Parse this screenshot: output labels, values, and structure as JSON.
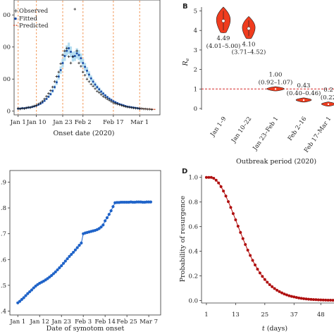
{
  "panels": {
    "a": {
      "legend": [
        "Observed",
        "Fitted",
        "Predicted"
      ],
      "xlabel": "Onset date (2020)"
    },
    "b": {
      "letter": "B",
      "ylabel_main": "R",
      "ylabel_sub": "e",
      "xlabel": "Outbreak period (2020)"
    },
    "c": {
      "xlabel": "Date of symotom onset"
    },
    "d": {
      "letter": "D",
      "ylabel": "Probability of resurgence",
      "xlabel_var": "t",
      "xlabel_unit": " (days)"
    }
  },
  "colors": {
    "observed": "#222222",
    "fitted": "#1f4fa8",
    "fit_band": "#a9d8ef",
    "predicted": "#d2401a",
    "period_line": "#f29a5c",
    "violin": "#f03c1e",
    "reference_line": "#d62a2a",
    "panel_c_series": "#1f63c8",
    "panel_d_series": "#b01010"
  },
  "chart_data": [
    {
      "panel": "A",
      "type": "scatter",
      "title": "",
      "xlabel": "Onset date (2020)",
      "ylabel": "",
      "x_categories": [
        "Jan 1",
        "Jan 10",
        "Jan 23",
        "Feb 2",
        "Feb 17",
        "Mar 1"
      ],
      "x_tick_day_index": [
        0,
        9,
        22,
        32,
        47,
        60
      ],
      "x_range_day_index": [
        -2,
        70
      ],
      "ylim": [
        -5,
        340
      ],
      "yticks": [
        0,
        100,
        200,
        300
      ],
      "ytick_labels": [
        "0",
        "00",
        "00",
        "00"
      ],
      "period_lines_day_index": [
        0,
        9,
        22,
        32,
        47,
        60
      ],
      "legend": [
        "Observed",
        "Fitted",
        "Predicted"
      ],
      "series": [
        {
          "name": "Observed",
          "marker": "+",
          "x": [
            0,
            1,
            2,
            3,
            4,
            5,
            6,
            7,
            8,
            9,
            10,
            11,
            12,
            13,
            14,
            15,
            16,
            17,
            18,
            19,
            20,
            21,
            22,
            23,
            24,
            25,
            26,
            27,
            28,
            29,
            30,
            31,
            32,
            33,
            34,
            35,
            36,
            37,
            38,
            39,
            40,
            41,
            42,
            43,
            44,
            45,
            46,
            47,
            48,
            49,
            50,
            51,
            52,
            53,
            54,
            55,
            56,
            57,
            58,
            59,
            60,
            61,
            62,
            63,
            64,
            65,
            66
          ],
          "y": [
            8,
            7,
            9,
            8,
            10,
            12,
            11,
            14,
            16,
            18,
            22,
            26,
            31,
            38,
            46,
            55,
            64,
            75,
            92,
            108,
            122,
            148,
            175,
            188,
            196,
            170,
            150,
            170,
            318,
            188,
            150,
            140,
            122,
            112,
            100,
            92,
            84,
            78,
            70,
            62,
            58,
            52,
            46,
            42,
            38,
            34,
            30,
            26,
            24,
            22,
            20,
            18,
            16,
            14,
            13,
            12,
            11,
            10,
            9,
            9,
            8,
            8,
            7,
            7,
            6,
            6,
            5
          ]
        },
        {
          "name": "Fitted",
          "marker": "o",
          "x": [
            0,
            1,
            2,
            3,
            4,
            5,
            6,
            7,
            8,
            9,
            10,
            11,
            12,
            13,
            14,
            15,
            16,
            17,
            18,
            19,
            20,
            21,
            22,
            23,
            24,
            25,
            26,
            27,
            28,
            29,
            30,
            31,
            32,
            33,
            34,
            35,
            36,
            37,
            38,
            39,
            40,
            41,
            42,
            43,
            44,
            45,
            46,
            47,
            48,
            49,
            50,
            51,
            52,
            53,
            54,
            55,
            56,
            57,
            58,
            59,
            60
          ],
          "y": [
            8,
            8,
            9,
            9,
            10,
            11,
            12,
            13,
            15,
            17,
            20,
            23,
            27,
            32,
            38,
            45,
            53,
            63,
            75,
            90,
            108,
            128,
            150,
            172,
            188,
            196,
            185,
            170,
            172,
            180,
            175,
            165,
            150,
            138,
            126,
            114,
            102,
            92,
            83,
            75,
            68,
            61,
            55,
            49,
            44,
            39,
            35,
            31,
            28,
            25,
            22,
            20,
            18,
            16,
            14,
            13,
            12,
            11,
            10,
            9,
            8
          ]
        },
        {
          "name": "Predicted",
          "marker": "--",
          "x": [
            60,
            61,
            62,
            63,
            64,
            65,
            66,
            67,
            68
          ],
          "y": [
            8,
            7.6,
            7.2,
            6.8,
            6.4,
            6.1,
            5.8,
            5.5,
            5.2
          ]
        }
      ]
    },
    {
      "panel": "B",
      "type": "violin",
      "title": "",
      "xlabel": "Outbreak period (2020)",
      "ylabel": "Re",
      "ylim": [
        0,
        5.2
      ],
      "yticks": [
        0,
        1,
        2,
        3,
        4,
        5
      ],
      "reference_line_y": 1,
      "categories": [
        "Jan 1–9",
        "Jan 10–22",
        "Jan 23–Feb 1",
        "Feb 2–16",
        "Feb 17–Mar 1"
      ],
      "values": [
        4.49,
        4.1,
        1.0,
        0.43,
        0.22
      ],
      "intervals": [
        [
          4.01,
          5.0
        ],
        [
          3.71,
          4.52
        ],
        [
          0.92,
          1.07
        ],
        [
          0.4,
          0.46
        ],
        [
          null,
          null
        ]
      ],
      "value_labels": [
        "4.49",
        "4.10",
        "1.00",
        "0.43",
        "0.2"
      ],
      "interval_labels": [
        "(4.01–5.00)",
        "(3.71–4.52)",
        "(0.92–1.07)",
        "(0.40–0.46)",
        "(0.22"
      ]
    },
    {
      "panel": "C",
      "type": "line",
      "title": "",
      "xlabel": "Date of symotom onset",
      "ylabel": "",
      "x_categories": [
        "Jan 1",
        "Jan 12",
        "Jan 23",
        "Feb 3",
        "Feb 14",
        "Feb 25",
        "Mar 7"
      ],
      "x_tick_day_index": [
        0,
        11,
        22,
        33,
        44,
        55,
        66
      ],
      "x_range_day_index": [
        -4,
        72
      ],
      "ylim": [
        0.385,
        0.945
      ],
      "yticks": [
        0.4,
        0.5,
        0.6,
        0.7,
        0.8,
        0.9
      ],
      "ytick_labels": [
        ".4",
        ".5",
        ".6",
        ".7",
        ".8",
        ".9"
      ],
      "x": [
        0,
        1,
        2,
        3,
        4,
        5,
        6,
        7,
        8,
        9,
        10,
        11,
        12,
        13,
        14,
        15,
        16,
        17,
        18,
        19,
        20,
        21,
        22,
        23,
        24,
        25,
        26,
        27,
        28,
        29,
        30,
        31,
        32,
        33,
        34,
        35,
        36,
        37,
        38,
        39,
        40,
        41,
        42,
        43,
        44,
        45,
        46,
        47,
        48,
        49,
        50,
        51,
        52,
        53,
        54,
        55,
        56,
        57,
        58,
        59,
        60,
        61,
        62,
        63,
        64,
        65,
        66,
        67
      ],
      "y": [
        0.432,
        0.438,
        0.445,
        0.452,
        0.46,
        0.468,
        0.475,
        0.482,
        0.49,
        0.497,
        0.503,
        0.508,
        0.512,
        0.516,
        0.521,
        0.526,
        0.532,
        0.538,
        0.545,
        0.552,
        0.56,
        0.568,
        0.576,
        0.585,
        0.594,
        0.603,
        0.612,
        0.62,
        0.628,
        0.637,
        0.646,
        0.655,
        0.664,
        0.7,
        0.703,
        0.705,
        0.707,
        0.709,
        0.711,
        0.713,
        0.716,
        0.72,
        0.726,
        0.734,
        0.75,
        0.762,
        0.775,
        0.789,
        0.805,
        0.82,
        0.821,
        0.821,
        0.822,
        0.822,
        0.822,
        0.822,
        0.822,
        0.823,
        0.822,
        0.822,
        0.823,
        0.823,
        0.823,
        0.822,
        0.822,
        0.823,
        0.823,
        0.823
      ]
    },
    {
      "panel": "D",
      "type": "line",
      "title": "",
      "xlabel": "t (days)",
      "ylabel": "Probability of resurgence",
      "xlim": [
        -1,
        54
      ],
      "ylim": [
        -0.02,
        1.05
      ],
      "xticks": [
        1,
        13,
        25,
        37,
        48
      ],
      "yticks": [
        0.0,
        0.2,
        0.4,
        0.6,
        0.8,
        1.0
      ],
      "ytick_labels": [
        "0.0",
        "0.2",
        "0.4",
        "0.6",
        "0.8",
        "1.0"
      ],
      "x": [
        1,
        2,
        3,
        4,
        5,
        6,
        7,
        8,
        9,
        10,
        11,
        12,
        13,
        14,
        15,
        16,
        17,
        18,
        19,
        20,
        21,
        22,
        23,
        24,
        25,
        26,
        27,
        28,
        29,
        30,
        31,
        32,
        33,
        34,
        35,
        36,
        37,
        38,
        39,
        40,
        41,
        42,
        43,
        44,
        45,
        46,
        47,
        48,
        49,
        50,
        51,
        52,
        53,
        54
      ],
      "y": [
        1.0,
        1.0,
        1.0,
        0.993,
        0.977,
        0.955,
        0.925,
        0.889,
        0.848,
        0.803,
        0.756,
        0.706,
        0.655,
        0.604,
        0.553,
        0.503,
        0.455,
        0.409,
        0.366,
        0.326,
        0.289,
        0.255,
        0.224,
        0.196,
        0.171,
        0.149,
        0.129,
        0.112,
        0.097,
        0.084,
        0.072,
        0.062,
        0.053,
        0.046,
        0.039,
        0.034,
        0.029,
        0.025,
        0.021,
        0.018,
        0.015,
        0.013,
        0.011,
        0.0095,
        0.0081,
        0.0069,
        0.0059,
        0.005,
        0.0042,
        0.0036,
        0.003,
        0.0026,
        0.0022,
        0.0019
      ]
    }
  ]
}
